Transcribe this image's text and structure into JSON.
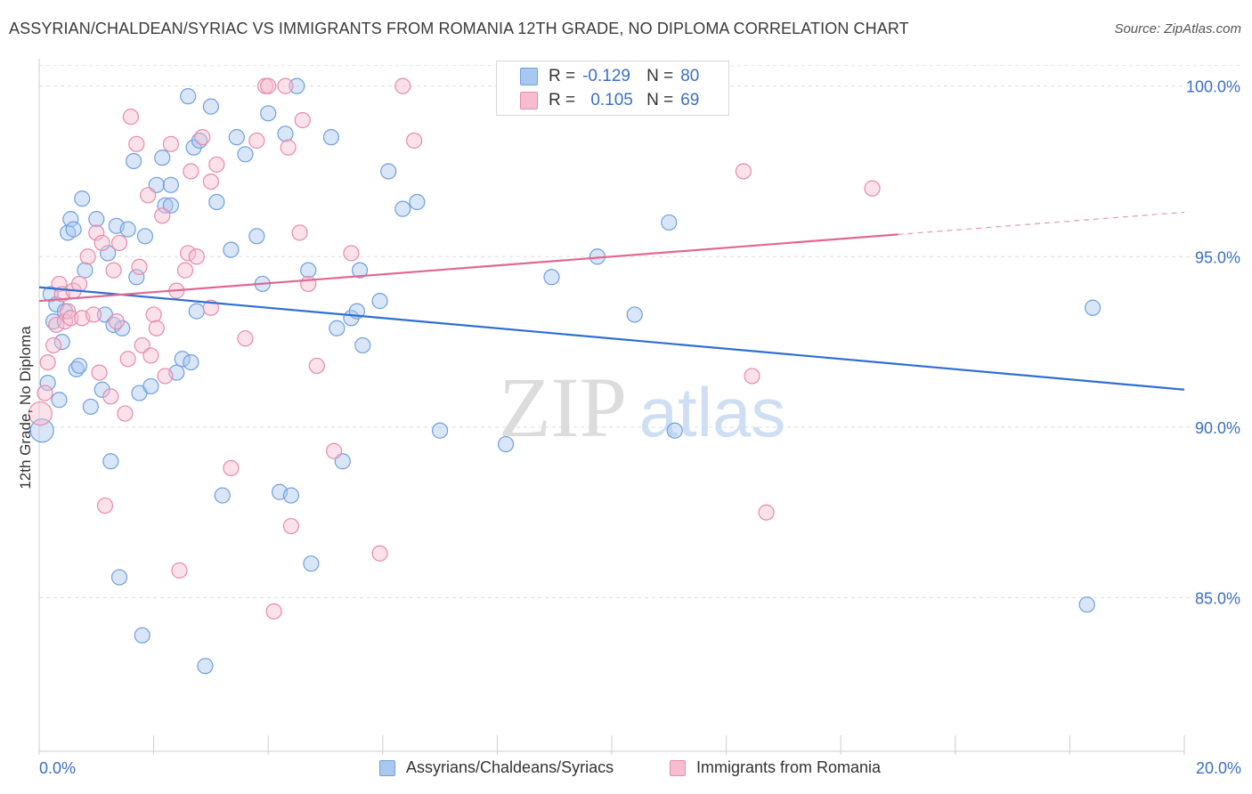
{
  "title": "ASSYRIAN/CHALDEAN/SYRIAC VS IMMIGRANTS FROM ROMANIA 12TH GRADE, NO DIPLOMA CORRELATION CHART",
  "source": "Source: ZipAtlas.com",
  "watermark": {
    "zip": "ZIP",
    "atlas": "atlas"
  },
  "legend_stats": [
    {
      "r_label": "R =",
      "r_value": "-0.129",
      "n_label": "N =",
      "n_value": "80",
      "color": "#a9c8f0",
      "border": "#6f9fe0"
    },
    {
      "r_label": "R =",
      "r_value": "0.105",
      "n_label": "N =",
      "n_value": "69",
      "color": "#f7bcd0",
      "border": "#e88aaa"
    }
  ],
  "chart_data": {
    "type": "scatter",
    "title": "ASSYRIAN/CHALDEAN/SYRIAC VS IMMIGRANTS FROM ROMANIA 12TH GRADE, NO DIPLOMA CORRELATION CHART",
    "xlabel": "",
    "ylabel": "12th Grade, No Diploma",
    "xlim": [
      0,
      20
    ],
    "ylim": [
      80.5,
      100.8
    ],
    "x_tick_labels": [
      "0.0%",
      "20.0%"
    ],
    "y_ticks": [
      85,
      90,
      95,
      100
    ],
    "y_tick_labels": [
      "85.0%",
      "90.0%",
      "95.0%",
      "100.0%"
    ],
    "grid": true,
    "legend_position": "bottom",
    "series": [
      {
        "name": "Assyrians/Chaldeans/Syriacs",
        "color": "#a9c8f0",
        "stroke": "#6f9fe0",
        "line_color": "#2f6fd0",
        "trend": {
          "x0": 0,
          "y0": 94.1,
          "x1": 20,
          "y1": 91.1,
          "solid_until": 20
        },
        "points": [
          [
            0.05,
            89.9
          ],
          [
            0.15,
            91.3
          ],
          [
            0.2,
            93.9
          ],
          [
            0.25,
            93.1
          ],
          [
            0.3,
            93.6
          ],
          [
            0.35,
            90.8
          ],
          [
            0.4,
            92.5
          ],
          [
            0.45,
            93.4
          ],
          [
            0.5,
            95.7
          ],
          [
            0.55,
            96.1
          ],
          [
            0.6,
            95.8
          ],
          [
            0.65,
            91.7
          ],
          [
            0.7,
            91.8
          ],
          [
            0.75,
            96.7
          ],
          [
            0.8,
            94.6
          ],
          [
            0.9,
            90.6
          ],
          [
            1.0,
            96.1
          ],
          [
            1.1,
            91.1
          ],
          [
            1.15,
            93.3
          ],
          [
            1.2,
            95.1
          ],
          [
            1.25,
            89.0
          ],
          [
            1.3,
            93.0
          ],
          [
            1.35,
            95.9
          ],
          [
            1.4,
            85.6
          ],
          [
            1.45,
            92.9
          ],
          [
            1.55,
            95.8
          ],
          [
            1.65,
            97.8
          ],
          [
            1.7,
            94.4
          ],
          [
            1.75,
            91.0
          ],
          [
            1.8,
            83.9
          ],
          [
            1.85,
            95.6
          ],
          [
            1.95,
            91.2
          ],
          [
            2.05,
            97.1
          ],
          [
            2.15,
            97.9
          ],
          [
            2.2,
            96.5
          ],
          [
            2.3,
            96.5
          ],
          [
            2.3,
            97.1
          ],
          [
            2.4,
            91.6
          ],
          [
            2.5,
            92.0
          ],
          [
            2.6,
            99.7
          ],
          [
            2.65,
            91.9
          ],
          [
            2.7,
            98.2
          ],
          [
            2.75,
            93.4
          ],
          [
            2.8,
            98.4
          ],
          [
            2.9,
            83.0
          ],
          [
            3.0,
            99.4
          ],
          [
            3.1,
            96.6
          ],
          [
            3.2,
            88.0
          ],
          [
            3.35,
            95.2
          ],
          [
            3.45,
            98.5
          ],
          [
            3.6,
            98.0
          ],
          [
            3.8,
            95.6
          ],
          [
            3.9,
            94.2
          ],
          [
            4.0,
            99.2
          ],
          [
            4.2,
            88.1
          ],
          [
            4.3,
            98.6
          ],
          [
            4.4,
            88.0
          ],
          [
            4.5,
            100.0
          ],
          [
            4.7,
            94.6
          ],
          [
            4.75,
            86.0
          ],
          [
            5.1,
            98.5
          ],
          [
            5.2,
            92.9
          ],
          [
            5.3,
            89.0
          ],
          [
            5.45,
            93.2
          ],
          [
            5.55,
            93.4
          ],
          [
            5.6,
            94.6
          ],
          [
            5.65,
            92.4
          ],
          [
            5.95,
            93.7
          ],
          [
            6.1,
            97.5
          ],
          [
            6.35,
            96.4
          ],
          [
            6.6,
            96.6
          ],
          [
            7.0,
            89.9
          ],
          [
            8.15,
            89.5
          ],
          [
            8.95,
            94.4
          ],
          [
            9.75,
            95.0
          ],
          [
            10.4,
            93.3
          ],
          [
            11.0,
            96.0
          ],
          [
            11.1,
            89.9
          ],
          [
            18.3,
            84.8
          ],
          [
            18.4,
            93.5
          ]
        ]
      },
      {
        "name": "Immigrants from Romania",
        "color": "#f7bcd0",
        "stroke": "#e88aaa",
        "line_color": "#e06890",
        "trend": {
          "x0": 0,
          "y0": 93.7,
          "x1": 20,
          "y1": 96.3,
          "solid_until": 15.0
        },
        "points": [
          [
            0.02,
            90.4
          ],
          [
            0.1,
            91.0
          ],
          [
            0.15,
            91.9
          ],
          [
            0.25,
            92.4
          ],
          [
            0.3,
            93.0
          ],
          [
            0.35,
            94.2
          ],
          [
            0.4,
            93.9
          ],
          [
            0.45,
            93.1
          ],
          [
            0.5,
            93.4
          ],
          [
            0.55,
            93.2
          ],
          [
            0.6,
            94.0
          ],
          [
            0.7,
            94.2
          ],
          [
            0.75,
            93.2
          ],
          [
            0.85,
            95.0
          ],
          [
            0.95,
            93.3
          ],
          [
            1.0,
            95.7
          ],
          [
            1.05,
            91.6
          ],
          [
            1.1,
            95.4
          ],
          [
            1.15,
            87.7
          ],
          [
            1.25,
            90.9
          ],
          [
            1.3,
            94.6
          ],
          [
            1.35,
            93.1
          ],
          [
            1.4,
            95.4
          ],
          [
            1.5,
            90.4
          ],
          [
            1.55,
            92.0
          ],
          [
            1.6,
            99.1
          ],
          [
            1.7,
            98.3
          ],
          [
            1.75,
            94.7
          ],
          [
            1.8,
            92.4
          ],
          [
            1.9,
            96.8
          ],
          [
            1.95,
            92.1
          ],
          [
            2.0,
            93.3
          ],
          [
            2.05,
            92.9
          ],
          [
            2.15,
            96.2
          ],
          [
            2.2,
            91.5
          ],
          [
            2.3,
            98.3
          ],
          [
            2.4,
            94.0
          ],
          [
            2.45,
            85.8
          ],
          [
            2.55,
            94.6
          ],
          [
            2.6,
            95.1
          ],
          [
            2.65,
            97.5
          ],
          [
            2.75,
            95.0
          ],
          [
            2.85,
            98.5
          ],
          [
            3.0,
            93.5
          ],
          [
            3.0,
            97.2
          ],
          [
            3.1,
            97.7
          ],
          [
            3.35,
            88.8
          ],
          [
            3.6,
            92.6
          ],
          [
            3.8,
            98.4
          ],
          [
            3.95,
            100.0
          ],
          [
            4.0,
            100.0
          ],
          [
            4.1,
            84.6
          ],
          [
            4.3,
            100.0
          ],
          [
            4.35,
            98.2
          ],
          [
            4.4,
            87.1
          ],
          [
            4.55,
            95.7
          ],
          [
            4.6,
            99.0
          ],
          [
            4.7,
            94.2
          ],
          [
            4.85,
            91.8
          ],
          [
            5.15,
            89.3
          ],
          [
            5.45,
            95.1
          ],
          [
            5.95,
            86.3
          ],
          [
            6.35,
            100.0
          ],
          [
            6.55,
            98.4
          ],
          [
            9.0,
            100.0
          ],
          [
            12.3,
            97.5
          ],
          [
            12.45,
            91.5
          ],
          [
            12.7,
            87.5
          ],
          [
            14.55,
            97.0
          ]
        ]
      }
    ]
  },
  "legend_bottom": [
    {
      "label": "Assyrians/Chaldeans/Syriacs",
      "color": "#a9c8f0",
      "border": "#6f9fe0"
    },
    {
      "label": "Immigrants from Romania",
      "color": "#f7bcd0",
      "border": "#e88aaa"
    }
  ]
}
